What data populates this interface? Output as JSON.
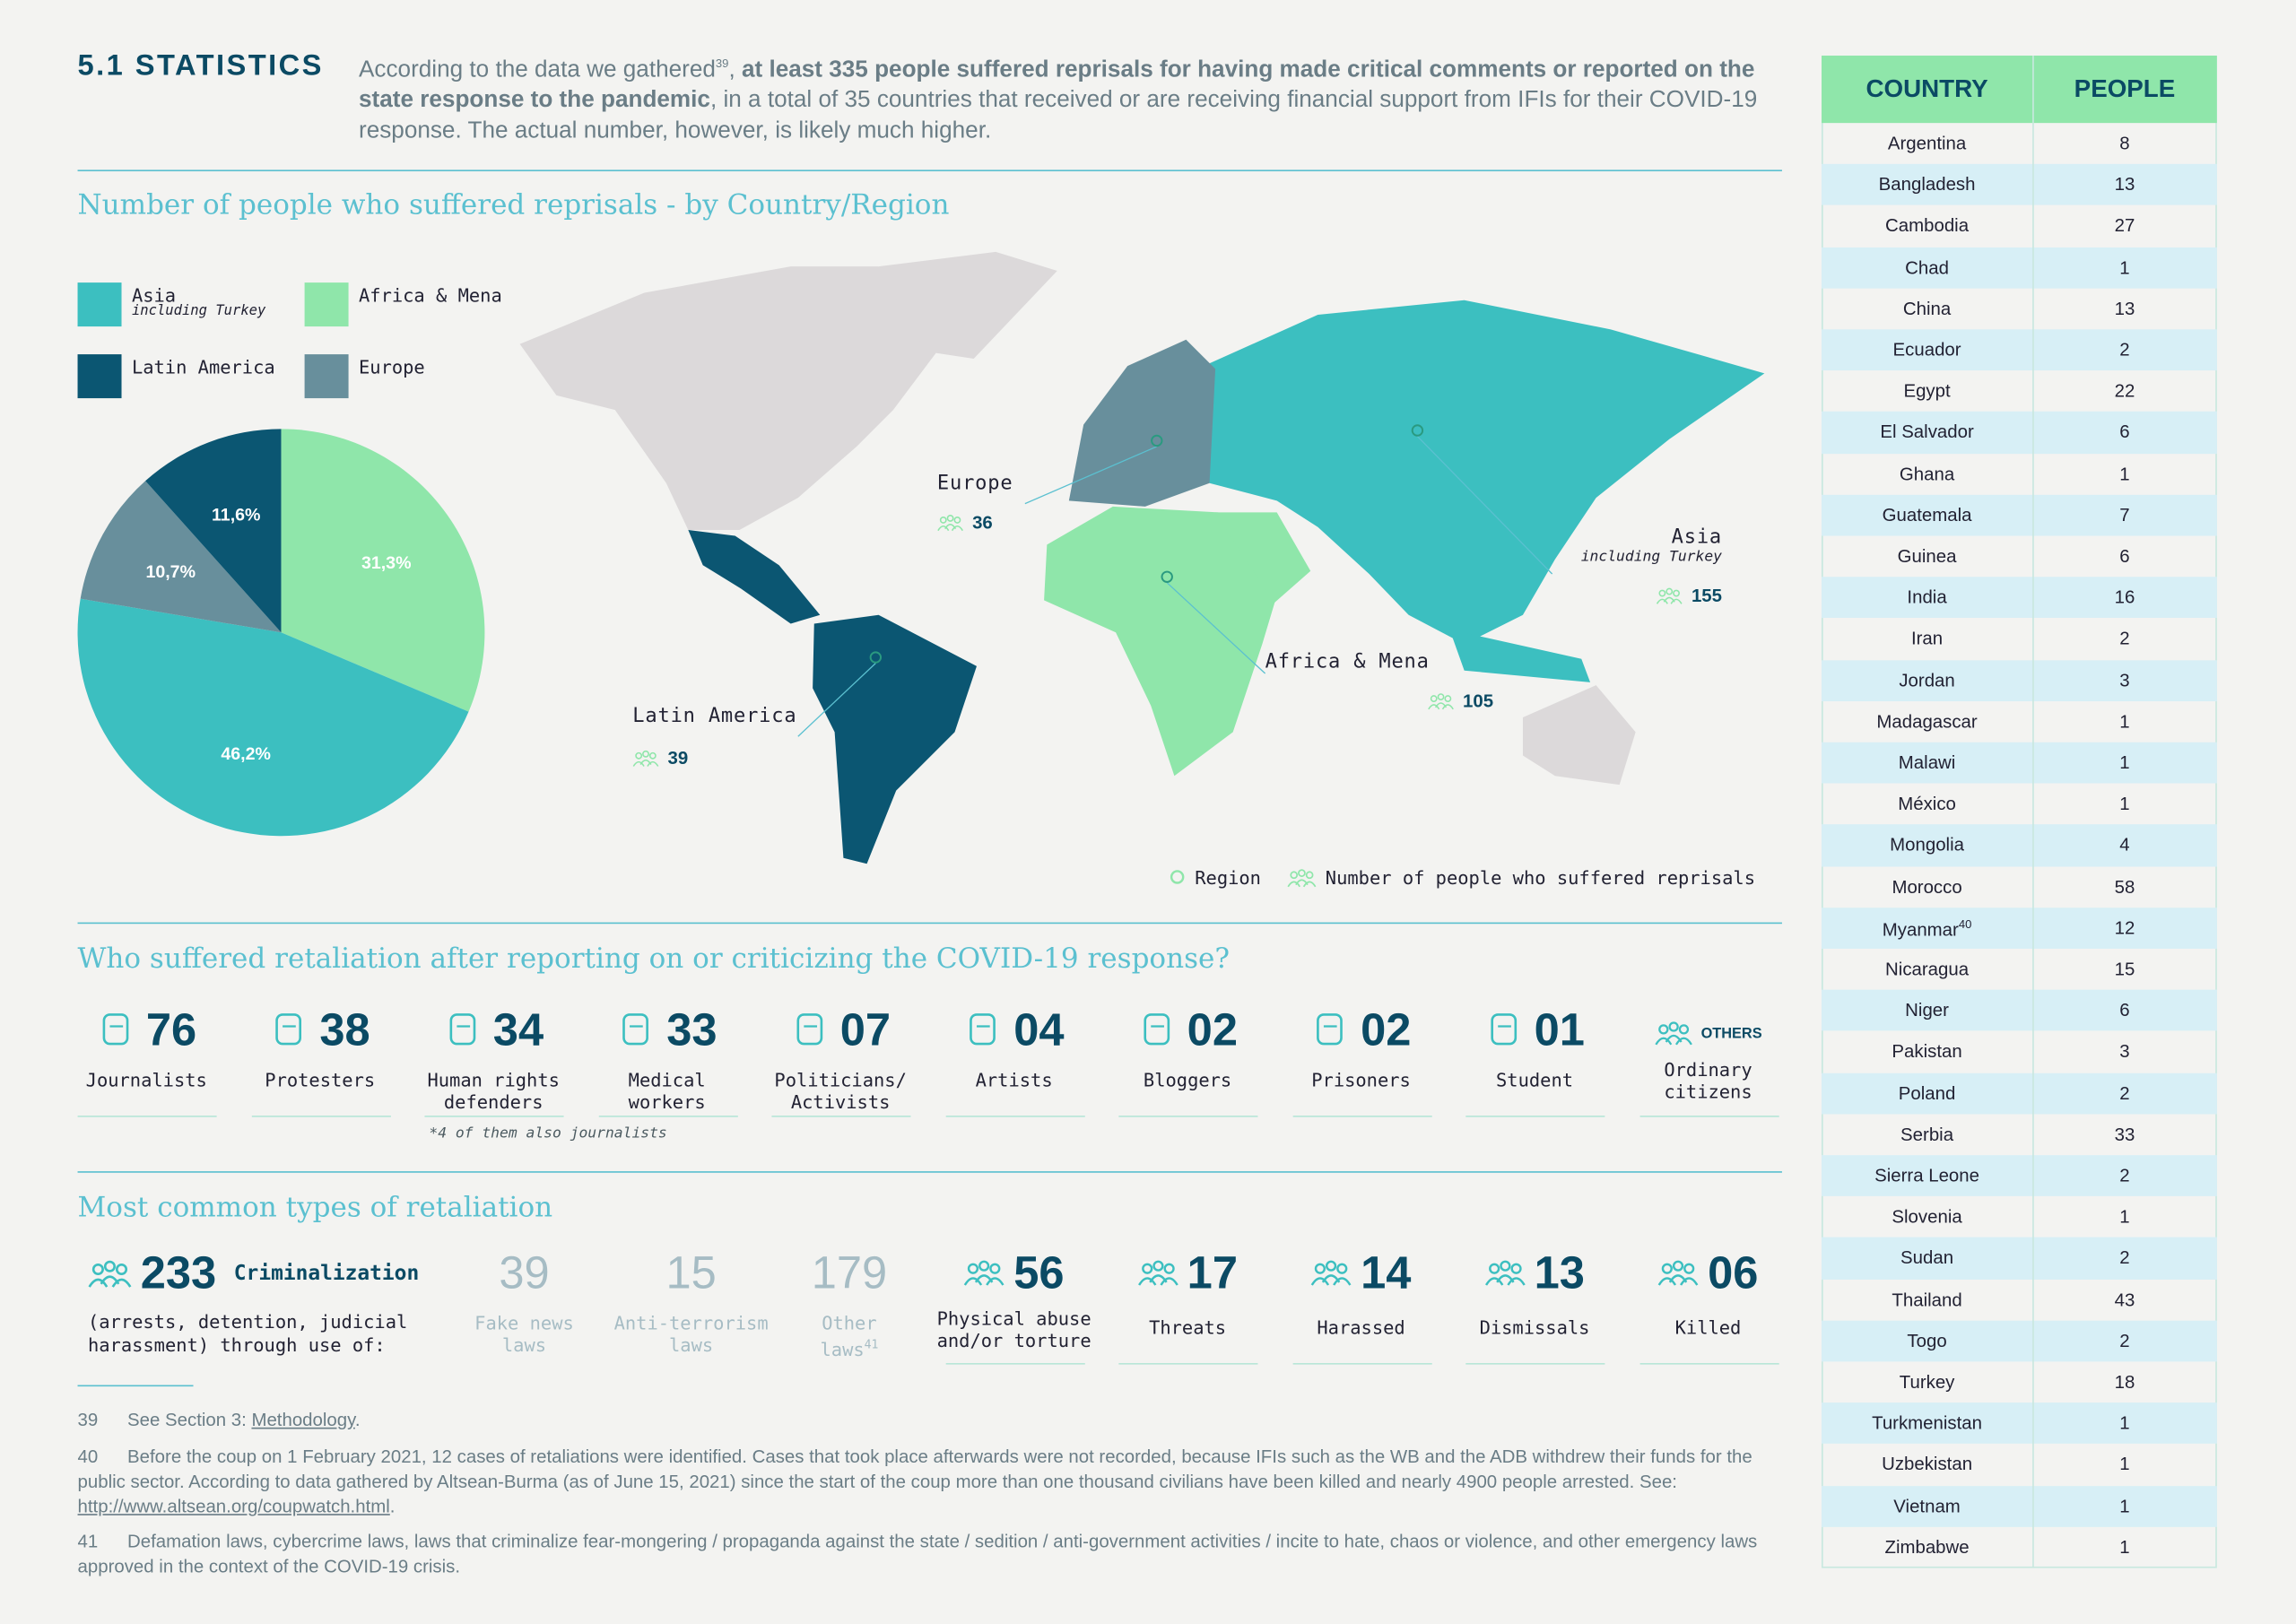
{
  "header": {
    "title": "5.1 STATISTICS",
    "intro": {
      "start": "According to the data we gathered",
      "note": "39",
      "sep": ", ",
      "bold": "at least 335 people suffered reprisals for having made critical comments or reported on the state response to the pandemic",
      "end": ", in a total of 35 countries that received or are receiving financial support from IFIs for their COVID-19 response. The actual number, however, is likely much higher."
    }
  },
  "map_section": {
    "title": "Number of people who suffered reprisals - by Country/Region",
    "regions": [
      {
        "name": "Europe",
        "count": 36
      },
      {
        "name": "Asia",
        "note": "including Turkey",
        "count": 155
      },
      {
        "name": "Africa & Mena",
        "count": 105
      },
      {
        "name": "Latin America",
        "count": 39
      }
    ],
    "legend": [
      "Region",
      "Number of people who suffered reprisals"
    ]
  },
  "chart_data": {
    "type": "pie",
    "categories": [
      "Africa & Mena",
      "Asia",
      "Europe",
      "Latin America"
    ],
    "category_note": "including Turkey",
    "values": [
      31.3,
      46.2,
      10.7,
      11.6
    ],
    "value_labels": [
      "31,3%",
      "46,2%",
      "10,7%",
      "11,6%"
    ],
    "colors": [
      "#8fe6aa",
      "#3cbfc0",
      "#688f9c",
      "#0b5672"
    ]
  },
  "groups": {
    "title": "Who suffered retaliation after reporting on or criticizing the COVID-19 response?",
    "items": [
      {
        "number": "76",
        "label": "Journalists"
      },
      {
        "number": "38",
        "label": "Protesters"
      },
      {
        "number": "34",
        "label": "Human rights defenders"
      },
      {
        "number": "33",
        "label": "Medical workers"
      },
      {
        "number": "07",
        "label": "Politicians/ Activists"
      },
      {
        "number": "04",
        "label": "Artists"
      },
      {
        "number": "02",
        "label": "Bloggers"
      },
      {
        "number": "02",
        "label": "Prisoners"
      },
      {
        "number": "01",
        "label": "Student"
      },
      {
        "number": "OTHERS",
        "label": "Ordinary citizens"
      }
    ],
    "note": "*4 of them also journalists"
  },
  "retaliation": {
    "title": "Most common types of retaliation",
    "main": {
      "number": "233",
      "label": "Criminalization",
      "description": "(arrests, detention, judicial harassment) through use of:"
    },
    "laws": [
      {
        "number": "39",
        "label": "Fake news laws"
      },
      {
        "number": "15",
        "label": "Anti-terrorism laws"
      },
      {
        "number": "179",
        "label": "Other laws",
        "note": "41"
      }
    ],
    "items": [
      {
        "number": "56",
        "label": "Physical abuse and/or torture"
      },
      {
        "number": "17",
        "label": "Threats"
      },
      {
        "number": "14",
        "label": "Harassed"
      },
      {
        "number": "13",
        "label": "Dismissals"
      },
      {
        "number": "06",
        "label": "Killed"
      }
    ]
  },
  "footnotes": [
    {
      "num": "39",
      "text": "See Section 3: ",
      "link": "Methodology",
      "end": "."
    },
    {
      "num": "40",
      "text": "Before the coup on 1 February 2021, 12 cases of retaliations were identified. Cases that took place afterwards were not recorded, because IFIs such as the WB and the ADB withdrew their funds for the public sector. According to data gathered by Altsean-Burma (as of June 15, 2021) since the start of the coup more than one thousand civilians have been killed and nearly 4900 people arrested. See: ",
      "link": "http://www.altsean.org/coupwatch.html",
      "end": "."
    },
    {
      "num": "41",
      "text": "Defamation laws, cybercrime laws, laws that criminalize fear-mongering / propaganda against the state / sedition / anti-government activities / incite to hate, chaos or violence, and other emergency laws approved in the context of the COVID-19 crisis."
    }
  ],
  "table": {
    "headers": [
      "COUNTRY",
      "PEOPLE"
    ],
    "rows": [
      {
        "country": "Argentina",
        "people": 8
      },
      {
        "country": "Bangladesh",
        "people": 13
      },
      {
        "country": "Cambodia",
        "people": 27
      },
      {
        "country": "Chad",
        "people": 1
      },
      {
        "country": "China",
        "people": 13
      },
      {
        "country": "Ecuador",
        "people": 2
      },
      {
        "country": "Egypt",
        "people": 22
      },
      {
        "country": "El Salvador",
        "people": 6
      },
      {
        "country": "Ghana",
        "people": 1
      },
      {
        "country": "Guatemala",
        "people": 7
      },
      {
        "country": "Guinea",
        "people": 6
      },
      {
        "country": "India",
        "people": 16
      },
      {
        "country": "Iran",
        "people": 2
      },
      {
        "country": "Jordan",
        "people": 3
      },
      {
        "country": "Madagascar",
        "people": 1
      },
      {
        "country": "Malawi",
        "people": 1
      },
      {
        "country": "México",
        "people": 1
      },
      {
        "country": "Mongolia",
        "people": 4
      },
      {
        "country": "Morocco",
        "people": 58
      },
      {
        "country": "Myanmar",
        "note": "40",
        "people": 12
      },
      {
        "country": "Nicaragua",
        "people": 15
      },
      {
        "country": "Niger",
        "people": 6
      },
      {
        "country": "Pakistan",
        "people": 3
      },
      {
        "country": "Poland",
        "people": 2
      },
      {
        "country": "Serbia",
        "people": 33
      },
      {
        "country": "Sierra Leone",
        "people": 2
      },
      {
        "country": "Slovenia",
        "people": 1
      },
      {
        "country": "Sudan",
        "people": 2
      },
      {
        "country": "Thailand",
        "people": 43
      },
      {
        "country": "Togo",
        "people": 2
      },
      {
        "country": "Turkey",
        "people": 18
      },
      {
        "country": "Turkmenistan",
        "people": 1
      },
      {
        "country": "Uzbekistan",
        "people": 1
      },
      {
        "country": "Vietnam",
        "people": 1
      },
      {
        "country": "Zimbabwe",
        "people": 1
      }
    ]
  }
}
